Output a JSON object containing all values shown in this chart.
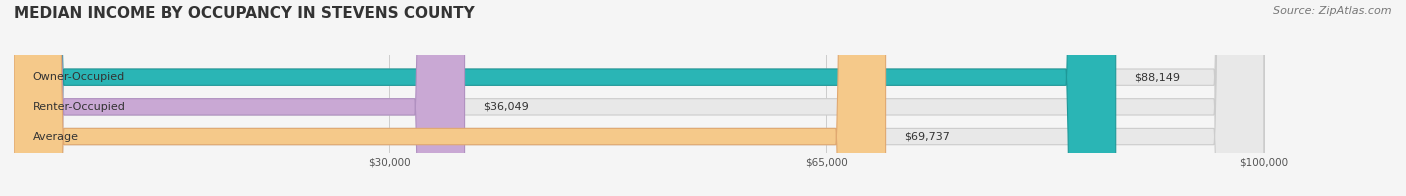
{
  "title": "MEDIAN INCOME BY OCCUPANCY IN STEVENS COUNTY",
  "source": "Source: ZipAtlas.com",
  "categories": [
    "Owner-Occupied",
    "Renter-Occupied",
    "Average"
  ],
  "values": [
    88149,
    36049,
    69737
  ],
  "labels": [
    "$88,149",
    "$36,049",
    "$69,737"
  ],
  "bar_colors": [
    "#2ab5b5",
    "#c9a8d4",
    "#f5c98a"
  ],
  "bar_edge_colors": [
    "#1e9898",
    "#b090c0",
    "#e0a870"
  ],
  "xmin": 0,
  "xmax": 100000,
  "xticks": [
    30000,
    65000,
    100000
  ],
  "xticklabels": [
    "$30,000",
    "$65,000",
    "$100,000"
  ],
  "bg_color": "#f5f5f5",
  "bar_bg_color": "#e8e8e8",
  "title_fontsize": 11,
  "source_fontsize": 8,
  "label_fontsize": 8,
  "bar_height": 0.55
}
